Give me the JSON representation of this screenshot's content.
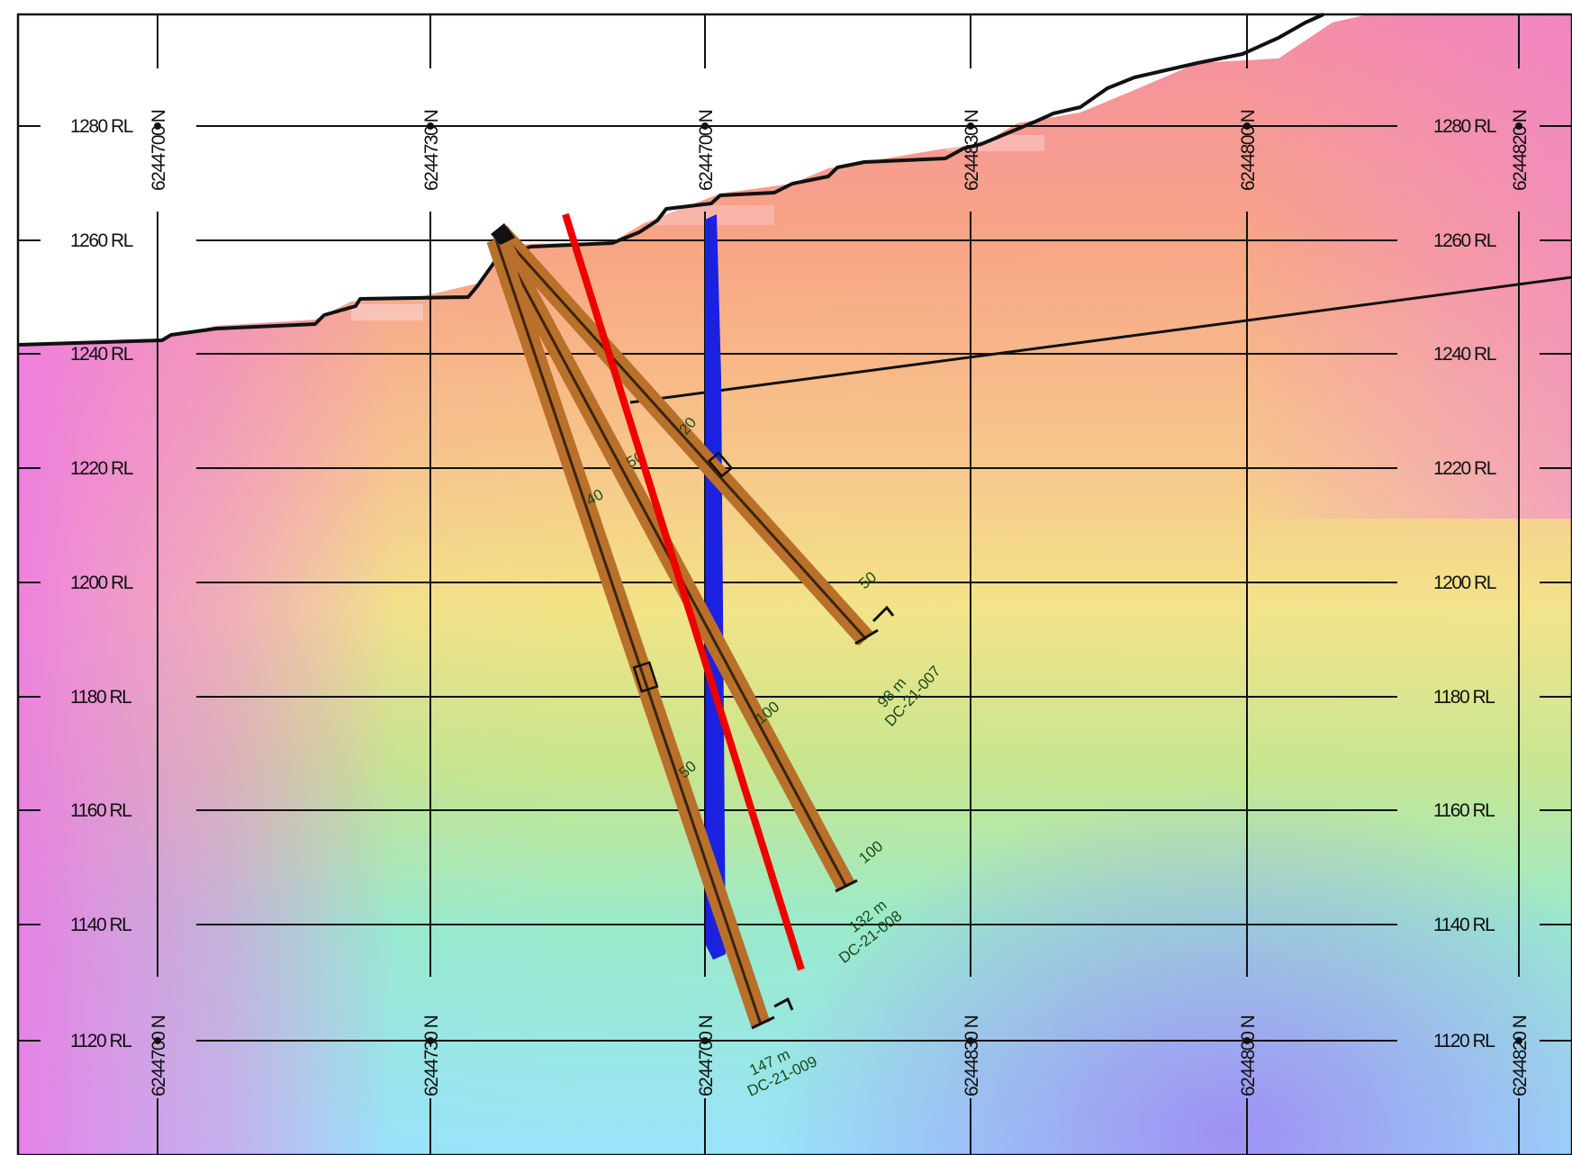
{
  "elevations": [
    "1280 RL",
    "1260 RL",
    "1240 RL",
    "1220 RL",
    "1200 RL",
    "1180 RL",
    "1160 RL",
    "1140 RL",
    "1120 RL"
  ],
  "northings": [
    "6244700 N",
    "6244730 N",
    "6244700 N",
    "6244830 N",
    "6244800 N",
    "6244820 N"
  ],
  "holes": [
    {
      "id": "DC-21-007",
      "length": "98 m"
    },
    {
      "id": "DC-21-008",
      "length": "132 m"
    },
    {
      "id": "DC-21-009",
      "length": "147 m"
    }
  ],
  "depth_ticks": [
    "20",
    "40",
    "50",
    "100",
    "50",
    "100",
    "50"
  ],
  "colors": {
    "topography": "#111111",
    "drill_trace": "#b8702a",
    "vertical_structure": "#1a22e0",
    "interpreted_line": "#ee0000",
    "grid": "#111111"
  }
}
